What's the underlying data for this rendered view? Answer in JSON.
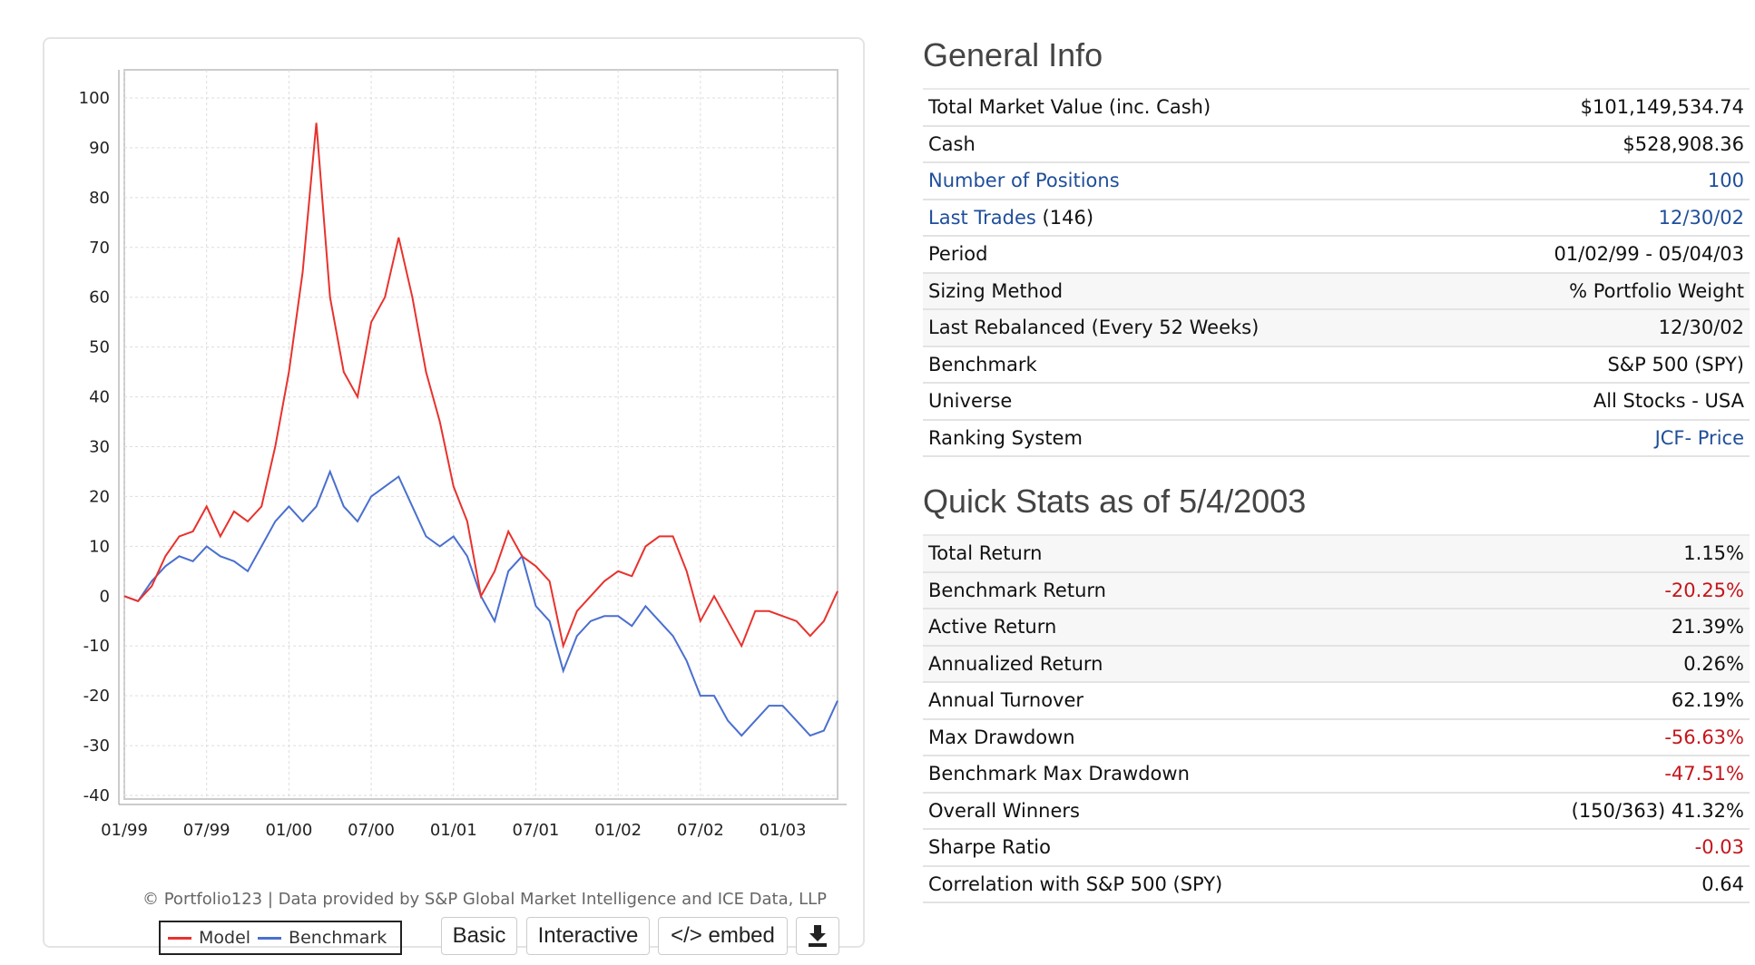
{
  "chart_data": {
    "type": "line",
    "ylim": [
      -40,
      107
    ],
    "yticks": [
      100,
      90,
      80,
      70,
      60,
      50,
      40,
      30,
      20,
      10,
      0,
      -10,
      -20,
      -30,
      -40
    ],
    "xticks": [
      "01/99",
      "07/99",
      "01/00",
      "07/00",
      "01/01",
      "07/01",
      "01/02",
      "07/02",
      "01/03"
    ],
    "x_unit": "months since 01/99",
    "grid": true,
    "legend_position": "bottom-left",
    "series": [
      {
        "name": "Model",
        "color": "#e8322d",
        "values": [
          0,
          -1,
          2,
          8,
          12,
          13,
          18,
          12,
          17,
          15,
          18,
          30,
          45,
          65,
          95,
          60,
          45,
          40,
          55,
          60,
          72,
          60,
          45,
          35,
          22,
          15,
          0,
          5,
          13,
          8,
          6,
          3,
          -10,
          -3,
          0,
          3,
          5,
          4,
          10,
          12,
          12,
          5,
          -5,
          0,
          -5,
          -10,
          -3,
          -3,
          -4,
          -5,
          -8,
          -5,
          1
        ]
      },
      {
        "name": "Benchmark",
        "color": "#4a6fcf",
        "values": [
          0,
          -1,
          3,
          6,
          8,
          7,
          10,
          8,
          7,
          5,
          10,
          15,
          18,
          15,
          18,
          25,
          18,
          15,
          20,
          22,
          24,
          18,
          12,
          10,
          12,
          8,
          0,
          -5,
          5,
          8,
          -2,
          -5,
          -15,
          -8,
          -5,
          -4,
          -4,
          -6,
          -2,
          -5,
          -8,
          -13,
          -20,
          -20,
          -25,
          -28,
          -25,
          -22,
          -22,
          -25,
          -28,
          -27,
          -21
        ]
      }
    ]
  },
  "chart": {
    "credit": "© Portfolio123 | Data provided by S&P Global Market Intelligence and ICE Data, LLP",
    "legend_model": "Model",
    "legend_benchmark": "Benchmark"
  },
  "buttons": {
    "basic": "Basic",
    "interactive": "Interactive",
    "embed": "</> embed",
    "download_icon": "download-icon"
  },
  "general": {
    "title": "General Info",
    "rows": [
      {
        "label": "Total Market Value (inc. Cash)",
        "value": "$101,149,534.74"
      },
      {
        "label": "Cash",
        "value": "$528,908.36"
      },
      {
        "label": "Number of Positions",
        "value": "100"
      },
      {
        "label": "Last Trades",
        "suffix": "(146)",
        "value": "12/30/02"
      },
      {
        "label": "Period",
        "value": "01/02/99 - 05/04/03"
      },
      {
        "label": "Sizing Method",
        "value": "% Portfolio Weight"
      },
      {
        "label": "Last Rebalanced (Every 52 Weeks)",
        "value": "12/30/02"
      },
      {
        "label": "Benchmark",
        "value": "S&P 500 (SPY)"
      },
      {
        "label": "Universe",
        "value": "All Stocks - USA"
      },
      {
        "label": "Ranking System",
        "value": "JCF- Price"
      }
    ]
  },
  "quick": {
    "title": "Quick Stats as of 5/4/2003",
    "rows": [
      {
        "label": "Total Return",
        "value": "1.15%"
      },
      {
        "label": "Benchmark Return",
        "value": "-20.25%"
      },
      {
        "label": "Active Return",
        "value": "21.39%"
      },
      {
        "label": "Annualized Return",
        "value": "0.26%"
      },
      {
        "label": "Annual Turnover",
        "value": "62.19%"
      },
      {
        "label": "Max Drawdown",
        "value": "-56.63%"
      },
      {
        "label": "Benchmark Max Drawdown",
        "value": "-47.51%"
      },
      {
        "label": "Overall Winners",
        "value": "(150/363) 41.32%"
      },
      {
        "label": "Sharpe Ratio",
        "value": "-0.03"
      },
      {
        "label": "Correlation with S&P 500 (SPY)",
        "value": "0.64"
      }
    ]
  },
  "colors": {
    "link": "#1f4e9a",
    "negative": "#c4161c"
  }
}
